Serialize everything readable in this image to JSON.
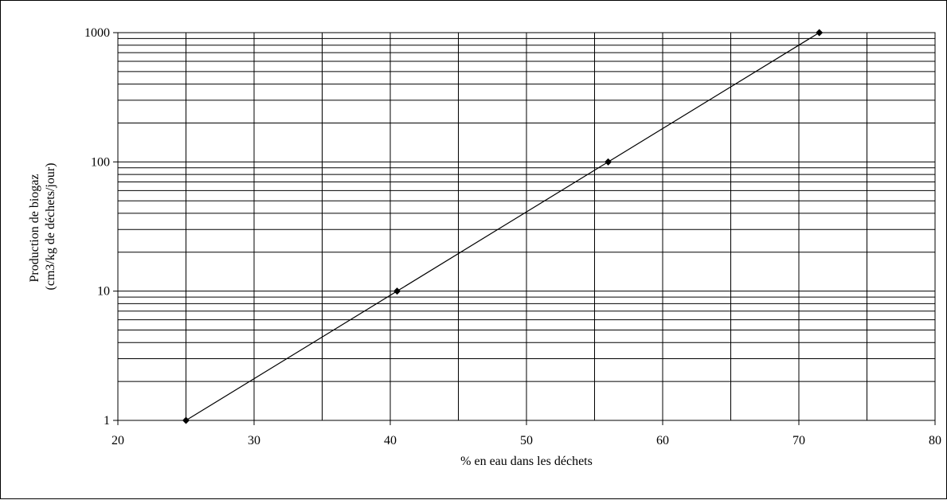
{
  "chart_data": {
    "type": "line",
    "title": "",
    "xlabel": "% en eau dans les déchets",
    "ylabel_lines": [
      "Production de biogaz",
      "(cm3/kg de déchets/jour)"
    ],
    "x_range": [
      20,
      80
    ],
    "x_major_ticks": [
      20,
      30,
      40,
      50,
      60,
      70,
      80
    ],
    "x_minor_gridlines": [
      25,
      35,
      45,
      55,
      65,
      75
    ],
    "y_scale": "log",
    "y_range": [
      1,
      1000
    ],
    "y_major_ticks": [
      1,
      10,
      100,
      1000
    ],
    "grid": true,
    "legend": "none",
    "series": [
      {
        "points": [
          {
            "x": 25.0,
            "y": 1
          },
          {
            "x": 40.5,
            "y": 10
          },
          {
            "x": 56.0,
            "y": 100
          },
          {
            "x": 71.5,
            "y": 1000
          }
        ]
      }
    ],
    "colors": {
      "line": "#000000",
      "grid": "#000000",
      "background": "#ffffff"
    }
  }
}
